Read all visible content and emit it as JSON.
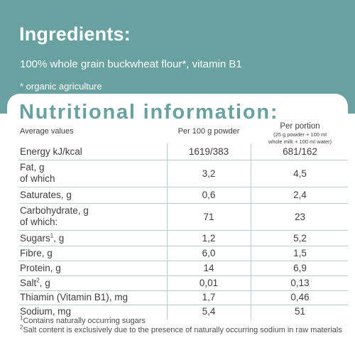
{
  "ingredients": {
    "title": "Ingredients:",
    "text": "100% whole grain buckwheat flour*, vitamin B1",
    "note": "* organic agriculture"
  },
  "nutrition": {
    "title": "Nutritional information:",
    "headers": {
      "average": "Average values",
      "per100": "Per 100 g powder",
      "portion": "Per portion",
      "portion_sub1": "(25 g powder + 100 ml",
      "portion_sub2": "whole milk + 100 ml water)"
    },
    "rows": [
      {
        "name": "Energy kJ/kcal",
        "per100": "1619/383",
        "portion": "681/162"
      },
      {
        "name": "Fat, g",
        "name2": "of which",
        "per100": "3,2",
        "portion": "4,5"
      },
      {
        "name": "Saturates, g",
        "per100": "0,6",
        "portion": "2,4"
      },
      {
        "name": "Carbohydrate, g",
        "name2": "of which:",
        "per100": "71",
        "portion": "23"
      },
      {
        "name": "Sugars",
        "sup": "1",
        "suffix": ", g",
        "per100": "1,2",
        "portion": "5,2"
      },
      {
        "name": "Fibre, g",
        "per100": "6,0",
        "portion": "1,5"
      },
      {
        "name": "Protein, g",
        "per100": "14",
        "portion": "6,9"
      },
      {
        "name": "Salt",
        "sup": "2",
        "suffix": ", g",
        "per100": "0,01",
        "portion": "0,13"
      },
      {
        "name": "Thiamin (Vitamin B1), mg",
        "per100": "1,7",
        "portion": "0,46"
      },
      {
        "name": "Sodium, mg",
        "per100": "5,4",
        "portion": "51"
      }
    ],
    "footnotes": [
      {
        "sup": "1",
        "text": "Contains naturally occurring sugars"
      },
      {
        "sup": "2",
        "text": "Salt content is exclusively due to the presence of naturally occurring sodium in raw materials"
      }
    ]
  },
  "colors": {
    "accent": "#69a1a0",
    "text": "#3e3e3e",
    "rule": "#b9cfce"
  }
}
